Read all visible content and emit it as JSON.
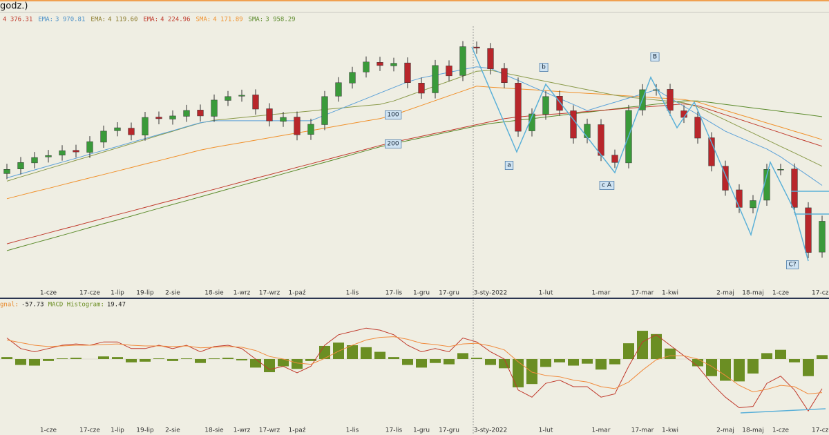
{
  "header": {
    "title": "godz.)",
    "indicators": [
      {
        "label": "4 376.31",
        "value": 4376.31,
        "color": "#c0392b"
      },
      {
        "name": "EMA:",
        "label": "3 970.81",
        "value": 3970.81,
        "color": "#4a90c8"
      },
      {
        "name": "EMA:",
        "label": "4 119.60",
        "value": 4119.6,
        "color": "#8a7a2a"
      },
      {
        "name": "EMA:",
        "label": "4 224.96",
        "value": 4224.96,
        "color": "#c0392b"
      },
      {
        "name": "SMA:",
        "label": "4 171.89",
        "value": 4171.89,
        "color": "#f0902a"
      },
      {
        "name": "SMA:",
        "label": "3 958.29",
        "value": 3958.29,
        "color": "#5a8a2a"
      }
    ]
  },
  "chart_data": [
    {
      "type": "candlestick",
      "categories": [
        null,
        null,
        null,
        "1-cze",
        null,
        null,
        "17-cze",
        null,
        "1-lip",
        null,
        "19-lip",
        null,
        "2-sie",
        null,
        null,
        "18-sie",
        null,
        "1-wrz",
        null,
        "17-wrz",
        null,
        "1-paź",
        null,
        null,
        null,
        "1-lis",
        null,
        null,
        "17-lis",
        null,
        "1-gru",
        null,
        "17-gru",
        null,
        null,
        "3-sty-2022",
        null,
        null,
        null,
        "1-lut",
        null,
        null,
        null,
        "1-mar",
        null,
        null,
        "17-mar",
        null,
        "1-kwi",
        null,
        null,
        null,
        "2-maj",
        null,
        "18-maj",
        null,
        "1-cze",
        null,
        null,
        "17-cze"
      ],
      "open": [
        4120,
        4145,
        4178,
        4210,
        4220,
        4246,
        4235,
        4290,
        4352,
        4366,
        4328,
        4426,
        4415,
        4430,
        4464,
        4430,
        4516,
        4539,
        4546,
        4471,
        4403,
        4426,
        4332,
        4385,
        4539,
        4610,
        4670,
        4722,
        4703,
        4719,
        4610,
        4557,
        4703,
        4651,
        4805,
        4797,
        4689,
        4610,
        4351,
        4441,
        4539,
        4460,
        4314,
        4385,
        4220,
        4178,
        4464,
        4572,
        4576,
        4460,
        4426,
        4314,
        4160,
        4032,
        3935,
        3976,
        4141,
        4145,
        3935,
        3695
      ],
      "high": [
        4173,
        4210,
        4237,
        4248,
        4274,
        4276,
        4323,
        4380,
        4398,
        4396,
        4454,
        4456,
        4462,
        4492,
        4494,
        4548,
        4567,
        4574,
        4576,
        4501,
        4454,
        4456,
        4417,
        4567,
        4642,
        4698,
        4754,
        4752,
        4747,
        4749,
        4640,
        4735,
        4733,
        4837,
        4835,
        4827,
        4719,
        4640,
        4473,
        4567,
        4569,
        4490,
        4417,
        4415,
        4250,
        4492,
        4604,
        4604,
        4606,
        4490,
        4456,
        4344,
        4190,
        4062,
        4004,
        4173,
        4173,
        4175,
        3965,
        3892
      ],
      "low": [
        4090,
        4115,
        4148,
        4180,
        4190,
        4207,
        4205,
        4260,
        4322,
        4300,
        4298,
        4387,
        4385,
        4400,
        4402,
        4400,
        4486,
        4509,
        4439,
        4375,
        4373,
        4300,
        4302,
        4355,
        4509,
        4580,
        4640,
        4675,
        4673,
        4582,
        4525,
        4527,
        4619,
        4621,
        4769,
        4657,
        4582,
        4319,
        4321,
        4411,
        4432,
        4282,
        4284,
        4188,
        4150,
        4148,
        4434,
        4542,
        4432,
        4394,
        4282,
        4132,
        4000,
        3907,
        3905,
        3946,
        4111,
        3907,
        3663,
        3665
      ],
      "close": [
        4143,
        4180,
        4207,
        4218,
        4244,
        4237,
        4293,
        4350,
        4368,
        4330,
        4424,
        4417,
        4432,
        4462,
        4432,
        4518,
        4537,
        4544,
        4469,
        4405,
        4424,
        4330,
        4387,
        4537,
        4612,
        4668,
        4724,
        4705,
        4717,
        4612,
        4555,
        4705,
        4649,
        4807,
        4799,
        4687,
        4612,
        4349,
        4443,
        4537,
        4462,
        4312,
        4387,
        4218,
        4180,
        4462,
        4574,
        4574,
        4462,
        4424,
        4312,
        4162,
        4030,
        3937,
        3974,
        4143,
        4143,
        3937,
        3693,
        3862
      ],
      "up_color": "#3a9a3a",
      "down_color": "#b8262b",
      "ylim": [
        3490,
        4910
      ],
      "series": [
        {
          "color": "#5a8a2a",
          "values": [
            3703,
            3724,
            3745,
            3765,
            3786,
            3807,
            3828,
            3849,
            3869,
            3890,
            3911,
            3932,
            3953,
            3973,
            3994,
            4015,
            4036,
            4057,
            4077,
            4098,
            4119,
            4140,
            4161,
            4181,
            4202,
            4223,
            4244,
            4265,
            4282,
            4298,
            4314,
            4330,
            4346,
            4362,
            4378,
            4391,
            4400,
            4409,
            4417,
            4426,
            4435,
            4444,
            4452,
            4461,
            4470,
            4479,
            4487,
            4496,
            4505,
            4514,
            4513,
            4504,
            4494,
            4485,
            4475,
            4466,
            4457,
            4447,
            4438,
            4428
          ]
        },
        {
          "color": "#c0392b",
          "values": [
            3740,
            3760,
            3779,
            3799,
            3819,
            3838,
            3858,
            3878,
            3898,
            3917,
            3937,
            3957,
            3976,
            3996,
            4016,
            4035,
            4055,
            4075,
            4095,
            4114,
            4134,
            4154,
            4173,
            4193,
            4213,
            4232,
            4252,
            4272,
            4290,
            4306,
            4322,
            4338,
            4353,
            4369,
            4385,
            4401,
            4417,
            4427,
            4433,
            4439,
            4444,
            4450,
            4456,
            4462,
            4468,
            4473,
            4479,
            4485,
            4491,
            4497,
            4487,
            4463,
            4438,
            4414,
            4390,
            4365,
            4341,
            4316,
            4292,
            4268
          ]
        },
        {
          "color": "#f0902a",
          "values": [
            3984,
            4003,
            4022,
            4040,
            4059,
            4078,
            4097,
            4115,
            4134,
            4153,
            4172,
            4190,
            4209,
            4228,
            4247,
            4262,
            4275,
            4288,
            4301,
            4314,
            4327,
            4340,
            4353,
            4366,
            4379,
            4392,
            4405,
            4418,
            4437,
            4463,
            4489,
            4515,
            4541,
            4567,
            4593,
            4588,
            4583,
            4578,
            4574,
            4569,
            4564,
            4559,
            4554,
            4550,
            4545,
            4540,
            4535,
            4530,
            4526,
            4521,
            4507,
            4484,
            4462,
            4439,
            4417,
            4394,
            4372,
            4349,
            4327,
            4304
          ]
        },
        {
          "color": "#8a9a4a",
          "values": [
            4079,
            4102,
            4124,
            4147,
            4169,
            4192,
            4214,
            4237,
            4259,
            4282,
            4304,
            4327,
            4349,
            4372,
            4394,
            4409,
            4416,
            4423,
            4431,
            4438,
            4445,
            4452,
            4459,
            4467,
            4474,
            4481,
            4488,
            4495,
            4513,
            4540,
            4567,
            4594,
            4620,
            4647,
            4674,
            4679,
            4664,
            4649,
            4634,
            4619,
            4604,
            4589,
            4574,
            4559,
            4544,
            4533,
            4526,
            4518,
            4511,
            4503,
            4481,
            4445,
            4410,
            4374,
            4339,
            4303,
            4267,
            4232,
            4196,
            4160
          ]
        },
        {
          "color": "#5aa0d8",
          "values": [
            4097,
            4118,
            4140,
            4161,
            4182,
            4203,
            4225,
            4246,
            4267,
            4289,
            4310,
            4331,
            4352,
            4374,
            4395,
            4406,
            4406,
            4406,
            4406,
            4406,
            4406,
            4406,
            4406,
            4436,
            4466,
            4496,
            4526,
            4556,
            4586,
            4616,
            4638,
            4653,
            4668,
            4683,
            4698,
            4689,
            4656,
            4624,
            4591,
            4559,
            4526,
            4494,
            4461,
            4484,
            4506,
            4529,
            4551,
            4574,
            4529,
            4484,
            4439,
            4394,
            4349,
            4317,
            4285,
            4253,
            4211,
            4159,
            4108,
            4056
          ]
        }
      ],
      "annotations": [
        {
          "text": "100"
        },
        {
          "text": "200"
        },
        {
          "text": "a"
        },
        {
          "text": "b"
        },
        {
          "text": "c A"
        },
        {
          "text": "B"
        },
        {
          "text": "C?"
        }
      ]
    },
    {
      "type": "macd",
      "ylim": [
        -105,
        84
      ],
      "legend": [
        {
          "name": "gnal:",
          "value": -57.73,
          "color": "#e8892b"
        },
        {
          "name": "MACD Histogram:",
          "value": 19.47,
          "color": "#6b8e23"
        }
      ],
      "series": [
        {
          "type": "bar",
          "color": "#6b8e23",
          "values": [
            3,
            -9,
            -10,
            -3,
            1,
            2,
            0,
            4,
            3,
            -5,
            -4,
            1,
            -3,
            1,
            -6,
            1,
            2,
            -2,
            -13,
            -20,
            -11,
            -15,
            -3,
            20,
            25,
            21,
            18,
            11,
            3,
            -9,
            -13,
            -6,
            -8,
            9,
            2,
            -9,
            -14,
            -43,
            -38,
            -12,
            -5,
            -10,
            -7,
            -16,
            -8,
            24,
            43,
            38,
            16,
            0,
            -11,
            -26,
            -33,
            -34,
            -22,
            9,
            14,
            -5,
            -26,
            6
          ]
        },
        {
          "type": "line",
          "color": "#c0392b",
          "values": [
            32,
            16,
            11,
            16,
            21,
            23,
            21,
            26,
            26,
            16,
            16,
            21,
            16,
            21,
            11,
            19,
            21,
            16,
            0,
            -16,
            -11,
            -21,
            -11,
            21,
            37,
            42,
            47,
            44,
            37,
            21,
            11,
            16,
            11,
            32,
            26,
            11,
            0,
            -47,
            -58,
            -37,
            -32,
            -42,
            -42,
            -58,
            -53,
            -11,
            26,
            37,
            21,
            5,
            -11,
            -37,
            -58,
            -74,
            -72,
            -37,
            -26,
            -47,
            -79,
            -45
          ]
        },
        {
          "type": "line",
          "color": "#f08a3c",
          "values": [
            29,
            25,
            21,
            19,
            20,
            21,
            21,
            22,
            23,
            21,
            20,
            20,
            19,
            20,
            17,
            18,
            19,
            18,
            13,
            4,
            0,
            -6,
            -8,
            1,
            12,
            21,
            29,
            33,
            34,
            30,
            24,
            22,
            19,
            23,
            24,
            20,
            14,
            -4,
            -20,
            -25,
            -27,
            -32,
            -35,
            -42,
            -45,
            -35,
            -17,
            -1,
            5,
            5,
            0,
            -11,
            -25,
            -40,
            -50,
            -46,
            -40,
            -42,
            -53,
            -51
          ]
        }
      ]
    }
  ]
}
